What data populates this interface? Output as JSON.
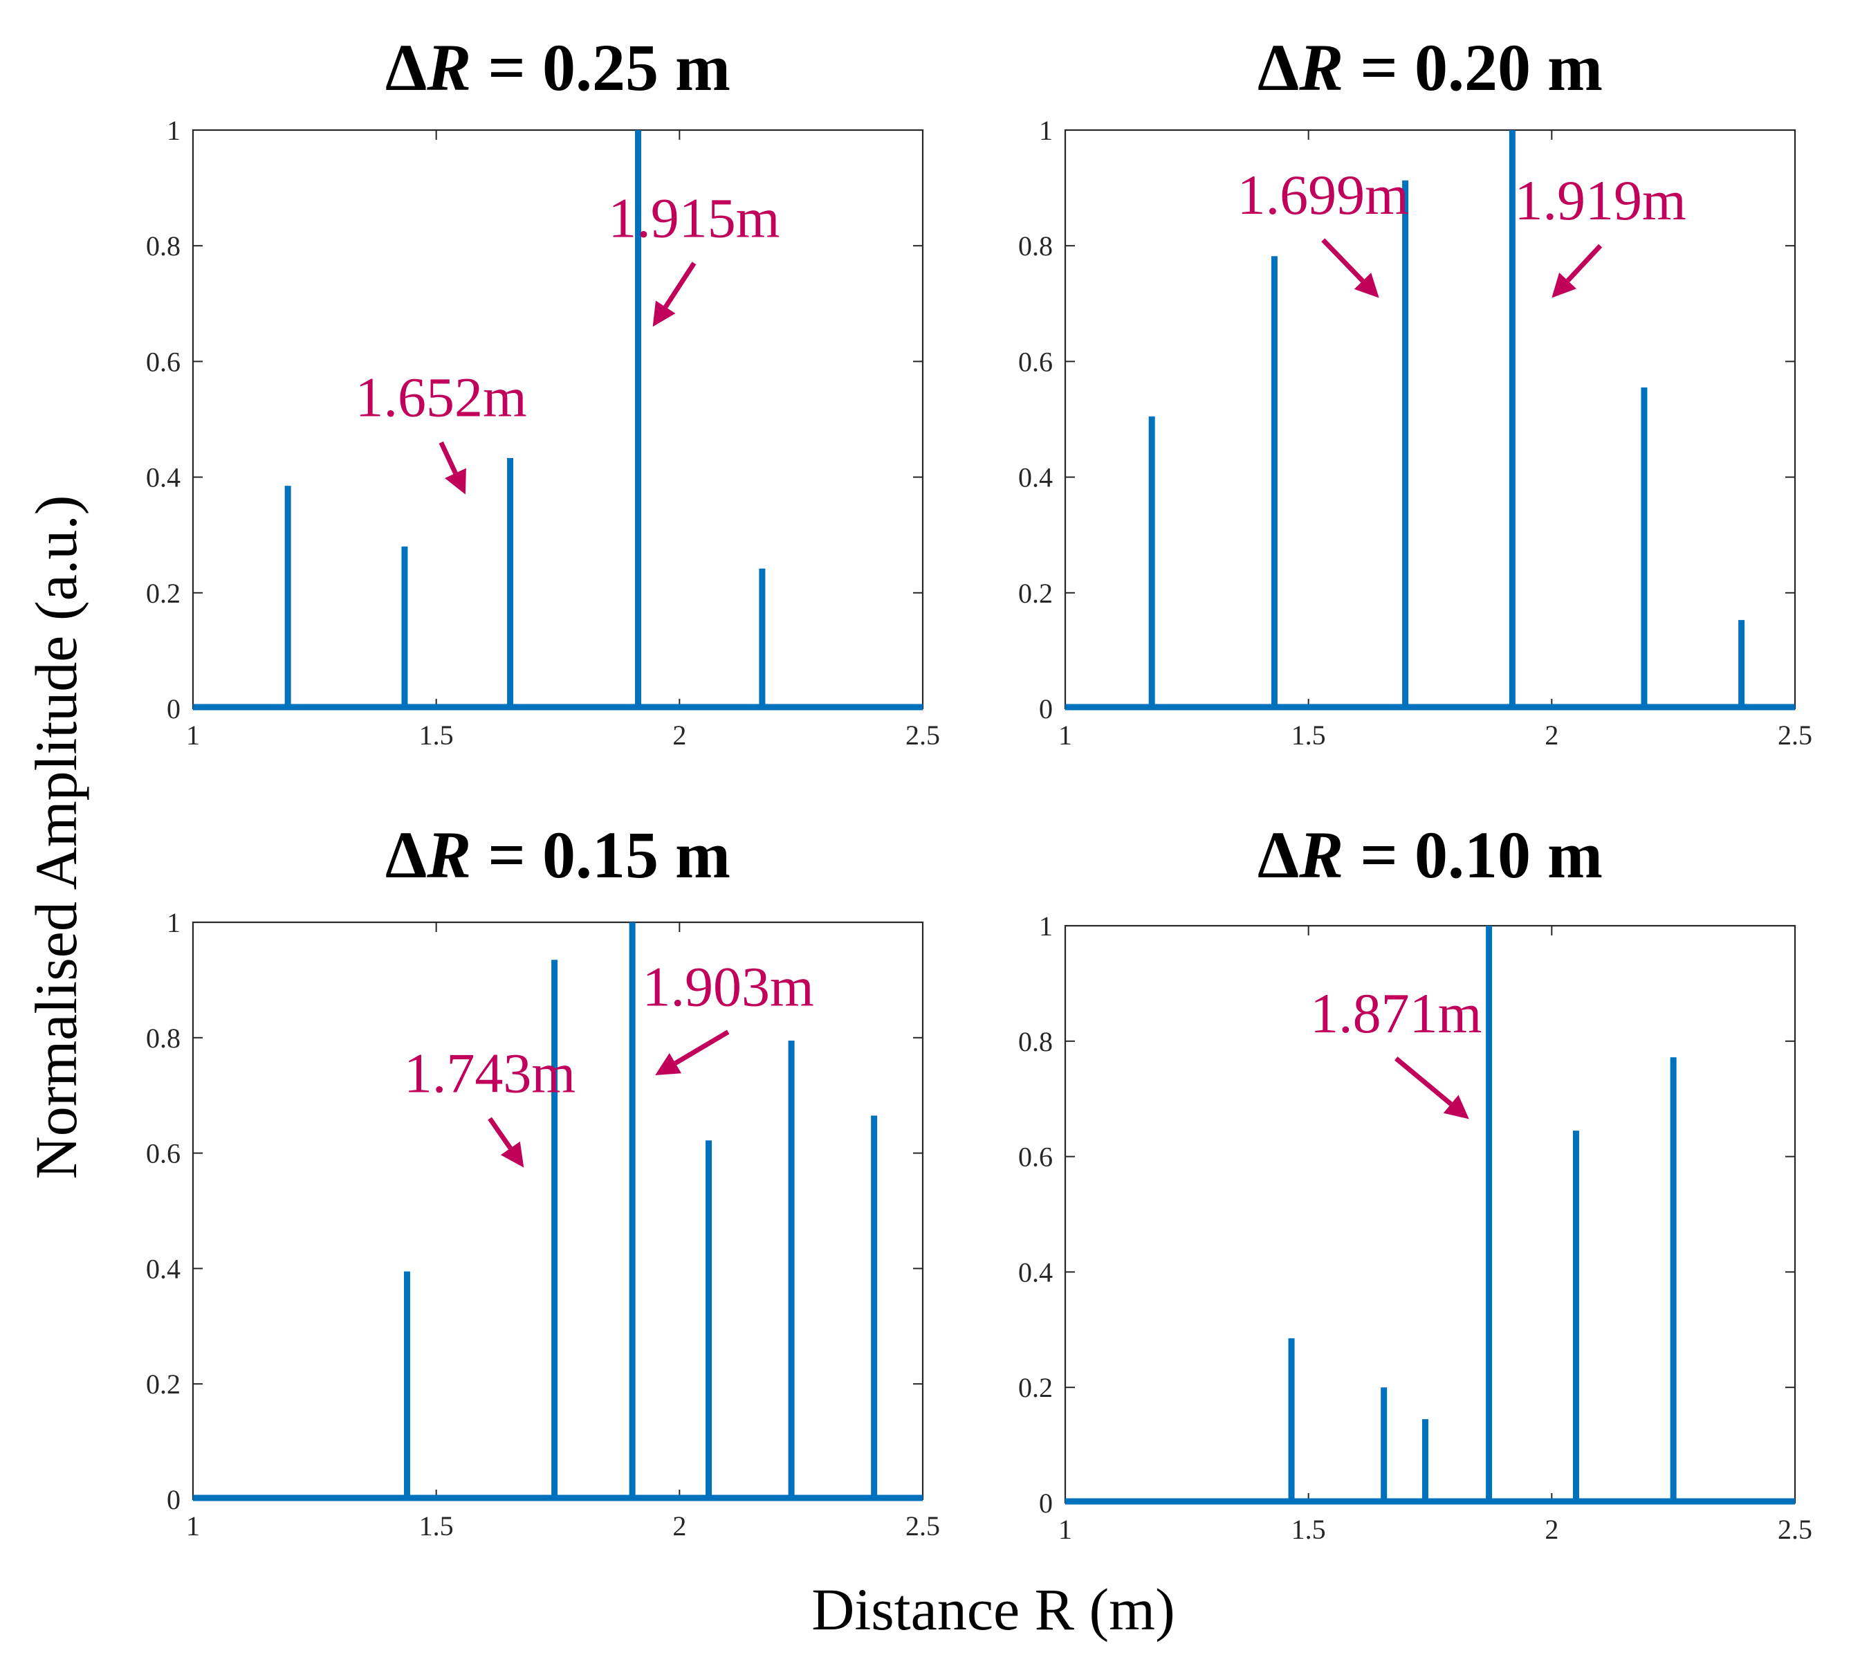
{
  "figure": {
    "ylabel": "Normalised Amplitude (a.u.)",
    "xlabel": "Distance R (m)",
    "accent_color": "#0072BD",
    "annotation_color": "#C0005B"
  },
  "chart_data": [
    {
      "type": "bar",
      "title_symbol": "Δ",
      "title_var": "R",
      "title_rest": " = 0.25 m",
      "xlim": [
        1,
        2.5
      ],
      "ylim": [
        0,
        1
      ],
      "xticks": [
        "1",
        "1.5",
        "2",
        "2.5"
      ],
      "yticks": [
        "0",
        "0.2",
        "0.4",
        "0.6",
        "0.8",
        "1"
      ],
      "peaks": [
        {
          "x": 1.195,
          "y": 0.385
        },
        {
          "x": 1.435,
          "y": 0.28
        },
        {
          "x": 1.652,
          "y": 0.433
        },
        {
          "x": 1.915,
          "y": 1.0
        },
        {
          "x": 2.17,
          "y": 0.242
        }
      ],
      "annotations": [
        {
          "text": "1.652m",
          "tail": [
            1.51,
            0.46
          ],
          "head": [
            1.56,
            0.37
          ]
        },
        {
          "text": "1.915m",
          "tail": [
            2.03,
            0.77
          ],
          "head": [
            1.945,
            0.66
          ]
        }
      ]
    },
    {
      "type": "bar",
      "title_symbol": "Δ",
      "title_var": "R",
      "title_rest": " = 0.20 m",
      "xlim": [
        1,
        2.5
      ],
      "ylim": [
        0,
        1
      ],
      "xticks": [
        "1",
        "1.5",
        "2",
        "2.5"
      ],
      "yticks": [
        "0",
        "0.2",
        "0.4",
        "0.6",
        "0.8",
        "1"
      ],
      "peaks": [
        {
          "x": 1.178,
          "y": 0.505
        },
        {
          "x": 1.43,
          "y": 0.782
        },
        {
          "x": 1.699,
          "y": 0.913
        },
        {
          "x": 1.919,
          "y": 1.0
        },
        {
          "x": 2.19,
          "y": 0.555
        },
        {
          "x": 2.39,
          "y": 0.153
        }
      ],
      "annotations": [
        {
          "text": "1.699m",
          "tail": [
            1.53,
            0.81
          ],
          "head": [
            1.645,
            0.71
          ]
        },
        {
          "text": "1.919m",
          "tail": [
            2.1,
            0.8
          ],
          "head": [
            2.0,
            0.71
          ]
        }
      ]
    },
    {
      "type": "bar",
      "title_symbol": "Δ",
      "title_var": "R",
      "title_rest": " = 0.15 m",
      "xlim": [
        1,
        2.5
      ],
      "ylim": [
        0,
        1
      ],
      "xticks": [
        "1",
        "1.5",
        "2",
        "2.5"
      ],
      "yticks": [
        "0",
        "0.2",
        "0.4",
        "0.6",
        "0.8",
        "1"
      ],
      "peaks": [
        {
          "x": 1.44,
          "y": 0.395
        },
        {
          "x": 1.743,
          "y": 0.935
        },
        {
          "x": 1.903,
          "y": 1.0
        },
        {
          "x": 2.06,
          "y": 0.622
        },
        {
          "x": 2.23,
          "y": 0.795
        },
        {
          "x": 2.4,
          "y": 0.665
        }
      ],
      "annotations": [
        {
          "text": "1.743m",
          "tail": [
            1.61,
            0.66
          ],
          "head": [
            1.68,
            0.575
          ]
        },
        {
          "text": "1.903m",
          "tail": [
            2.1,
            0.81
          ],
          "head": [
            1.95,
            0.735
          ]
        }
      ]
    },
    {
      "type": "bar",
      "title_symbol": "Δ",
      "title_var": "R",
      "title_rest": " = 0.10 m",
      "xlim": [
        1,
        2.5
      ],
      "ylim": [
        0,
        1
      ],
      "xticks": [
        "1",
        "1.5",
        "2",
        "2.5"
      ],
      "yticks": [
        "0",
        "0.2",
        "0.4",
        "0.6",
        "0.8",
        "1"
      ],
      "peaks": [
        {
          "x": 1.465,
          "y": 0.285
        },
        {
          "x": 1.655,
          "y": 0.2
        },
        {
          "x": 1.74,
          "y": 0.145
        },
        {
          "x": 1.871,
          "y": 1.0
        },
        {
          "x": 2.05,
          "y": 0.645
        },
        {
          "x": 2.25,
          "y": 0.772
        }
      ],
      "annotations": [
        {
          "text": "1.871m",
          "tail": [
            1.68,
            0.77
          ],
          "head": [
            1.83,
            0.665
          ]
        }
      ]
    }
  ]
}
